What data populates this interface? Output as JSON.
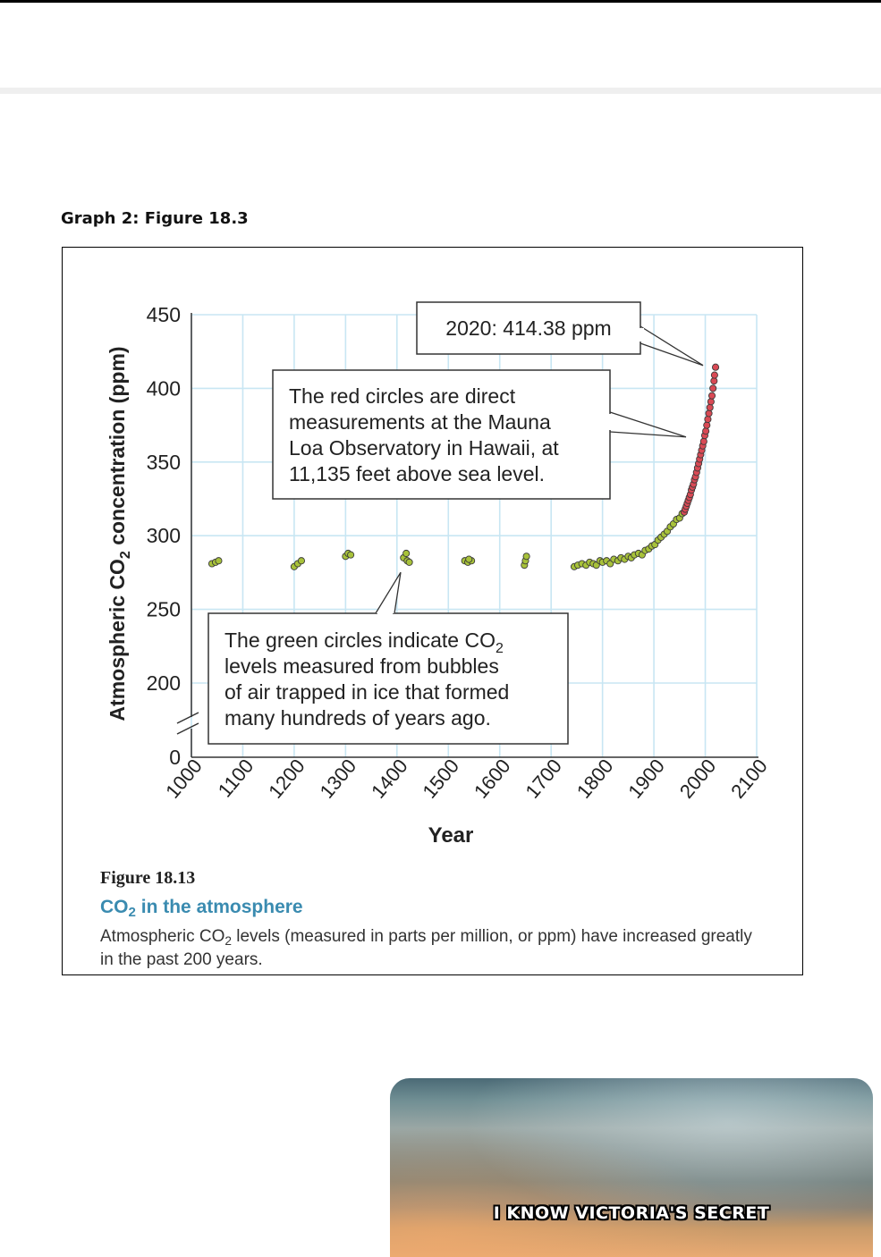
{
  "section_title": "Graph 2: Figure 18.3",
  "figure": {
    "label": "Figure 18.13",
    "title_prefix": "CO",
    "title_sub": "2",
    "title_suffix": " in the atmosphere",
    "desc_prefix": "Atmospheric CO",
    "desc_sub": "2",
    "desc_suffix": " levels (measured in parts per million, or ppm) have increased greatly in the past 200 years."
  },
  "chart_data": {
    "type": "scatter",
    "xlabel": "Year",
    "ylabel_prefix": "Atmospheric CO",
    "ylabel_sub": "2",
    "ylabel_suffix": " concentration (ppm)",
    "xlim": [
      1000,
      2100
    ],
    "ylim": [
      200,
      450
    ],
    "axis_break": true,
    "x_ticks": [
      "1000",
      "1100",
      "1200",
      "1300",
      "1400",
      "1500",
      "1600",
      "1700",
      "1800",
      "1900",
      "2000",
      "2100"
    ],
    "y_ticks": [
      "0",
      "200",
      "250",
      "300",
      "350",
      "400",
      "450"
    ],
    "grid": true,
    "series": [
      {
        "color": "#a8c23a",
        "points": [
          [
            1040,
            281
          ],
          [
            1047,
            282
          ],
          [
            1053,
            283
          ],
          [
            1200,
            279
          ],
          [
            1207,
            281
          ],
          [
            1214,
            283
          ],
          [
            1300,
            286
          ],
          [
            1305,
            288
          ],
          [
            1310,
            287
          ],
          [
            1413,
            285
          ],
          [
            1420,
            283
          ],
          [
            1418,
            288
          ],
          [
            1424,
            282
          ],
          [
            1532,
            283
          ],
          [
            1538,
            282
          ],
          [
            1545,
            283
          ],
          [
            1540,
            284
          ],
          [
            1648,
            280
          ],
          [
            1650,
            283
          ],
          [
            1652,
            286
          ],
          [
            1745,
            279
          ],
          [
            1752,
            280
          ],
          [
            1760,
            281
          ],
          [
            1768,
            280
          ],
          [
            1775,
            282
          ],
          [
            1782,
            281
          ],
          [
            1788,
            280
          ],
          [
            1795,
            283
          ],
          [
            1800,
            282
          ],
          [
            1808,
            283
          ],
          [
            1815,
            281
          ],
          [
            1822,
            284
          ],
          [
            1830,
            283
          ],
          [
            1836,
            285
          ],
          [
            1843,
            284
          ],
          [
            1850,
            286
          ],
          [
            1856,
            285
          ],
          [
            1862,
            287
          ],
          [
            1870,
            288
          ],
          [
            1877,
            287
          ],
          [
            1883,
            290
          ],
          [
            1890,
            291
          ],
          [
            1896,
            293
          ],
          [
            1902,
            294
          ],
          [
            1908,
            297
          ],
          [
            1914,
            299
          ],
          [
            1920,
            301
          ],
          [
            1926,
            303
          ],
          [
            1932,
            306
          ],
          [
            1938,
            308
          ],
          [
            1944,
            311
          ],
          [
            1950,
            312
          ],
          [
            1955,
            315
          ]
        ]
      },
      {
        "color": "#d94a55",
        "points": [
          [
            1959,
            316
          ],
          [
            1961,
            318
          ],
          [
            1963,
            320
          ],
          [
            1965,
            322
          ],
          [
            1967,
            324
          ],
          [
            1969,
            326
          ],
          [
            1971,
            328
          ],
          [
            1973,
            331
          ],
          [
            1975,
            333
          ],
          [
            1977,
            335
          ],
          [
            1979,
            338
          ],
          [
            1981,
            340
          ],
          [
            1983,
            343
          ],
          [
            1985,
            346
          ],
          [
            1987,
            349
          ],
          [
            1989,
            352
          ],
          [
            1991,
            355
          ],
          [
            1993,
            358
          ],
          [
            1995,
            361
          ],
          [
            1997,
            364
          ],
          [
            1999,
            368
          ],
          [
            2001,
            371
          ],
          [
            2003,
            375
          ],
          [
            2005,
            379
          ],
          [
            2007,
            383
          ],
          [
            2009,
            387
          ],
          [
            2011,
            391
          ],
          [
            2013,
            395
          ],
          [
            2015,
            400
          ],
          [
            2017,
            405
          ],
          [
            2018,
            409
          ],
          [
            2020,
            414.38
          ]
        ]
      }
    ],
    "annotations": [
      {
        "text": "2020: 414.38 ppm"
      },
      {
        "lines": [
          "The red circles are direct",
          "measurements at the Mauna",
          "Loa Observatory in Hawaii, at",
          "11,135 feet above sea level."
        ]
      },
      {
        "lines_before": "The green circles indicate CO",
        "lines_before_sub": "2",
        "lines": [
          "levels measured from bubbles",
          "of air trapped in ice that formed",
          "many hundreds of years ago."
        ]
      }
    ]
  },
  "video": {
    "caption": "I KNOW VICTORIA'S SECRET"
  }
}
